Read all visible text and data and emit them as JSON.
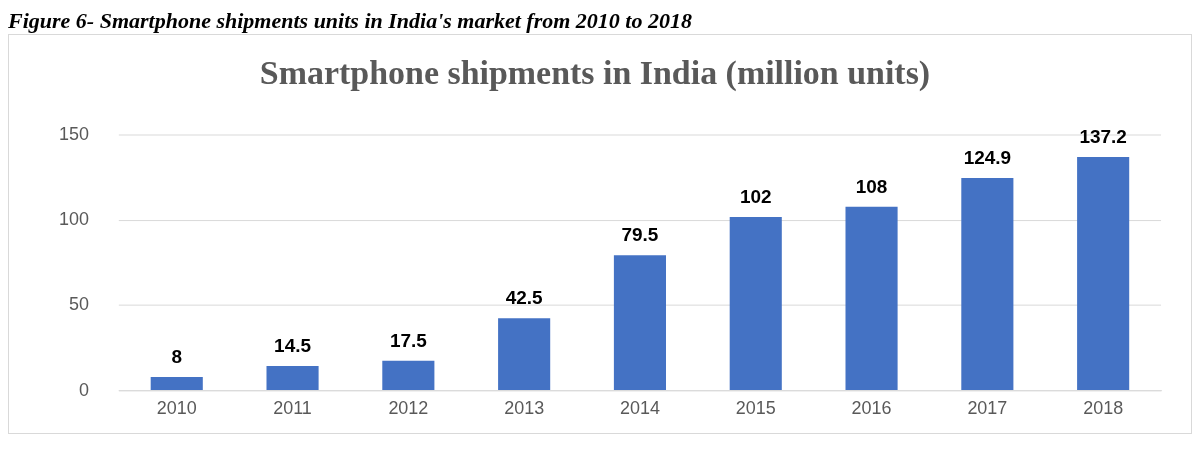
{
  "chart_data": {
    "type": "bar",
    "title": "Smartphone shipments in India (million units)",
    "annotations": [
      "Figure 6- Smartphone shipments units in India's market from 2010 to 2018"
    ],
    "categories": [
      "2010",
      "2011",
      "2012",
      "2013",
      "2014",
      "2015",
      "2016",
      "2017",
      "2018"
    ],
    "values": [
      8,
      14.5,
      17.5,
      42.5,
      79.5,
      102,
      108,
      124.9,
      137.2
    ],
    "color": "#4472c4",
    "ylim": [
      0,
      150
    ],
    "yticks": [
      0,
      50,
      100,
      150
    ],
    "grid": "y",
    "data_labels": true,
    "legend": false
  }
}
